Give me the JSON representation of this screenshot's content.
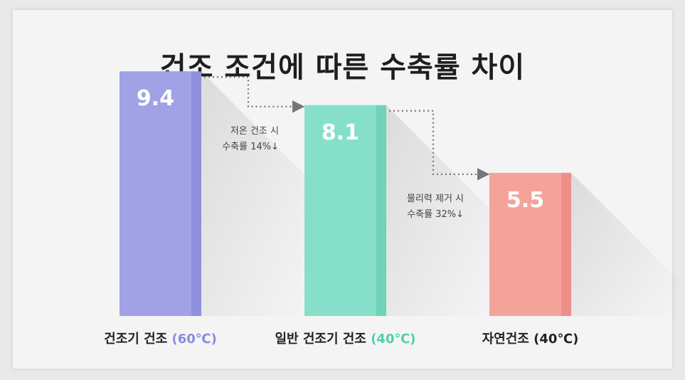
{
  "title": "건조 조건에 따른 수축률 차이",
  "chart_data": {
    "type": "bar",
    "title": "건조 조건에 따른 수축률 차이",
    "categories": [
      {
        "name": "건조기 건조",
        "temp": "(60℃)"
      },
      {
        "name": "일반 건조기 건조",
        "temp": "(40℃)"
      },
      {
        "name": "자연건조",
        "temp": "(40℃)"
      }
    ],
    "values": [
      9.4,
      8.1,
      5.5
    ],
    "value_labels": [
      "9.4",
      "8.1",
      "5.5"
    ],
    "ylim": [
      0,
      10.5
    ],
    "grid": false,
    "colors": [
      {
        "face": "#a1a1e6",
        "side": "#8f8fde",
        "temp_label": "#8a8ae0"
      },
      {
        "face": "#86e0c9",
        "side": "#70d2b8",
        "temp_label": "#4fcfae"
      },
      {
        "face": "#f4a39b",
        "side": "#ee8f87",
        "temp_label": "#222222"
      }
    ],
    "annotations": [
      {
        "line1": "저온 건조 시",
        "line2": "수축률 14%↓"
      },
      {
        "line1": "물리력 제거 시",
        "line2": "수축률 32%↓"
      }
    ]
  }
}
